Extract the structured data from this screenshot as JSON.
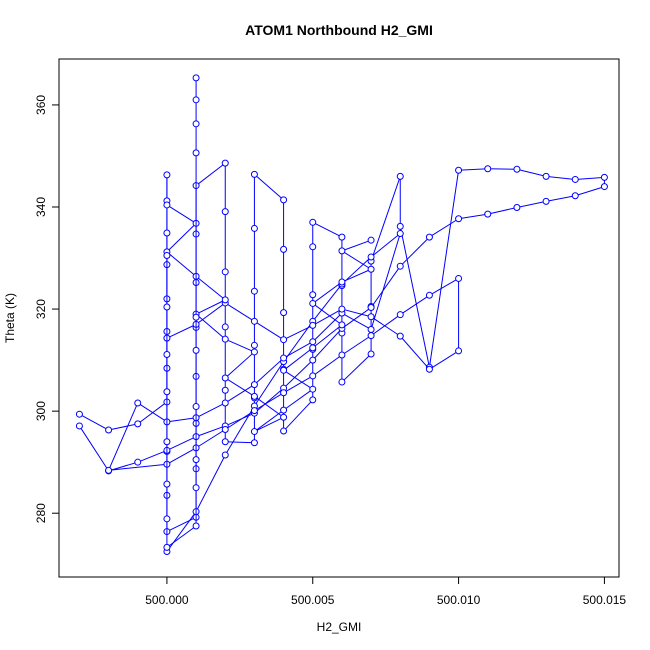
{
  "chart_data": {
    "type": "line",
    "title": "ATOM1 Northbound H2_GMI",
    "xlabel": "H2_GMI",
    "ylabel": "Theta (K)",
    "xlim": [
      499.9963,
      500.0155
    ],
    "ylim": [
      267.5,
      369.0
    ],
    "x_ticks": [
      500.0,
      500.005,
      500.01,
      500.015
    ],
    "x_tick_labels": [
      "500.000",
      "500.005",
      "500.010",
      "500.015"
    ],
    "y_ticks": [
      280,
      300,
      320,
      340,
      360
    ],
    "y_tick_labels": [
      "280",
      "300",
      "320",
      "340",
      "360"
    ],
    "grid": false,
    "legend": "none",
    "marker": "open-circle",
    "color": "#0000ff",
    "series": [
      {
        "x": [
          499.997,
          499.998,
          499.999,
          500.0,
          500.0,
          500.0,
          500.0,
          500.0,
          500.0,
          500.0,
          500.0,
          500.0,
          500.0,
          500.0,
          500.001,
          500.001,
          500.001,
          500.001,
          500.001,
          500.001,
          500.001,
          500.001,
          500.002,
          500.002,
          500.002,
          500.002,
          500.002,
          500.002,
          500.003,
          500.003,
          500.003,
          500.003,
          500.003,
          500.003,
          500.004,
          500.004,
          500.004,
          500.004,
          500.004,
          500.005,
          500.005,
          500.005,
          500.005,
          500.005,
          500.006,
          500.006,
          500.006,
          500.006,
          500.007,
          500.007,
          500.007,
          500.008,
          500.008,
          500.009,
          500.01,
          500.011,
          500.012,
          500.013,
          500.014,
          500.015,
          500.015,
          500.014,
          500.013,
          500.012,
          500.011,
          500.01,
          500.009,
          500.008,
          500.007,
          500.006,
          500.005,
          500.004,
          500.003,
          500.002,
          500.001,
          500.0,
          499.999,
          499.998,
          499.997
        ],
        "y": [
          299.4,
          296.3,
          297.5,
          301.8,
          308.4,
          315.6,
          322.0,
          328.7,
          334.9,
          341.2,
          346.3,
          292.1,
          283.5,
          276.4,
          279.2,
          288.7,
          297.6,
          306.8,
          316.4,
          325.2,
          334.7,
          344.2,
          348.6,
          339.1,
          327.3,
          316.5,
          304.1,
          294.0,
          293.8,
          302.6,
          312.9,
          323.5,
          335.8,
          346.4,
          341.4,
          331.7,
          319.3,
          308.2,
          296.1,
          302.2,
          312.1,
          322.8,
          332.2,
          337.0,
          334.1,
          324.6,
          315.3,
          305.7,
          311.2,
          320.5,
          329.4,
          346.0,
          336.2,
          308.6,
          347.2,
          347.5,
          347.4,
          346.0,
          345.4,
          345.8,
          344.0,
          342.2,
          341.1,
          339.9,
          338.6,
          337.7,
          334.1,
          328.4,
          320.3,
          316.2,
          310.0,
          304.5,
          299.6,
          297.1,
          295.0,
          292.3,
          290.0,
          288.3,
          297.1
        ]
      },
      {
        "x": [
          500.0,
          500.001,
          500.002,
          500.003,
          500.004,
          500.005,
          500.006,
          500.007,
          500.008,
          500.007,
          500.006,
          500.005,
          500.004,
          500.003,
          500.002,
          500.001,
          500.0,
          499.999,
          499.998,
          500.0,
          500.001,
          500.002,
          500.003,
          500.004,
          500.005,
          500.006,
          500.007,
          500.008,
          500.009,
          500.01,
          500.01,
          500.009,
          500.008,
          500.007,
          500.006,
          500.005,
          500.004,
          500.003,
          500.002,
          500.001,
          500.0
        ],
        "y": [
          272.5,
          280.3,
          291.4,
          301.0,
          309.7,
          317.6,
          324.9,
          330.2,
          334.8,
          316.0,
          319.2,
          313.6,
          310.4,
          305.2,
          301.6,
          298.7,
          297.9,
          301.6,
          288.4,
          289.6,
          292.8,
          296.4,
          300.1,
          303.6,
          306.9,
          311.0,
          314.8,
          318.9,
          322.7,
          326.0,
          311.8,
          308.2,
          314.7,
          318.5,
          320.0,
          316.8,
          314.0,
          317.6,
          321.2,
          317.0,
          314.3
        ]
      },
      {
        "x": [
          500.0,
          500.001,
          500.0,
          500.001,
          500.002,
          500.001,
          500.002,
          500.003,
          500.002,
          500.003,
          500.004,
          500.003,
          500.004,
          500.005,
          500.004,
          500.005,
          500.006,
          500.005,
          500.006,
          500.007,
          500.006,
          500.007
        ],
        "y": [
          340.4,
          336.8,
          331.2,
          326.4,
          321.8,
          319.0,
          314.1,
          311.6,
          306.5,
          302.9,
          298.8,
          296.0,
          300.2,
          304.3,
          308.0,
          312.4,
          316.9,
          321.1,
          325.3,
          327.8,
          331.4,
          333.5
        ]
      },
      {
        "x": [
          500.001,
          500.001,
          500.001,
          500.001,
          500.001,
          500.001,
          500.001,
          500.001,
          500.001,
          500.001,
          500.0,
          500.0,
          500.0,
          500.0,
          500.0,
          500.0,
          500.0,
          500.0
        ],
        "y": [
          365.3,
          361.0,
          356.3,
          350.6,
          318.4,
          311.9,
          300.9,
          290.5,
          285.0,
          277.5,
          273.3,
          278.9,
          285.7,
          294.0,
          303.8,
          311.1,
          320.4,
          330.5
        ]
      }
    ]
  }
}
